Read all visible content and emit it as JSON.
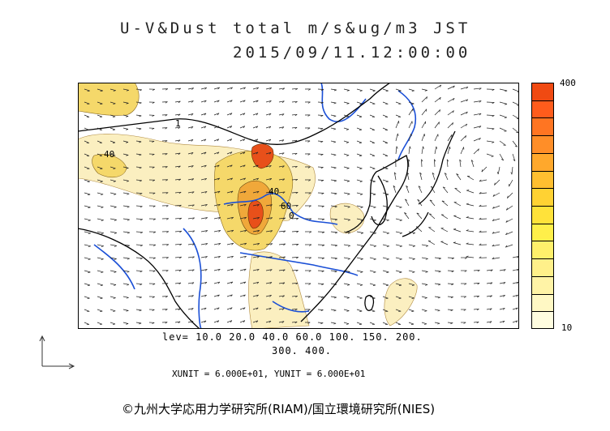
{
  "header": {
    "title": "U-V&Dust total m/s&ug/m3 JST",
    "datetime": "2015/09/11.12:00:00"
  },
  "colorbar": {
    "max_label": "400",
    "min_label": "10",
    "colors": [
      "#fffde0",
      "#fff8c4",
      "#fff3a6",
      "#fff08a",
      "#fff06b",
      "#ffef4a",
      "#ffe23a",
      "#ffd233",
      "#ffbf30",
      "#ffa82c",
      "#ff8e28",
      "#ff7522",
      "#ff5c1c",
      "#f04a12"
    ]
  },
  "levels": {
    "line1": "lev= 10.0 20.0 40.0 60.0 100. 150. 200.",
    "line2": "300. 400."
  },
  "units_text": "XUNIT = 6.000E+01, YUNIT = 6.000E+01",
  "credit": "©九州大学応用力学研究所(RIAM)/国立環境研究所(NIES)",
  "map": {
    "contour_labels": [
      "40",
      "40",
      "60",
      "0",
      "1"
    ],
    "colors": {
      "coast": "#000000",
      "river": "#1a4fd6",
      "dust_light": "#fbefc0",
      "dust_mid": "#f5d86a",
      "dust_high": "#f0a83a",
      "dust_max": "#e8501a"
    }
  }
}
